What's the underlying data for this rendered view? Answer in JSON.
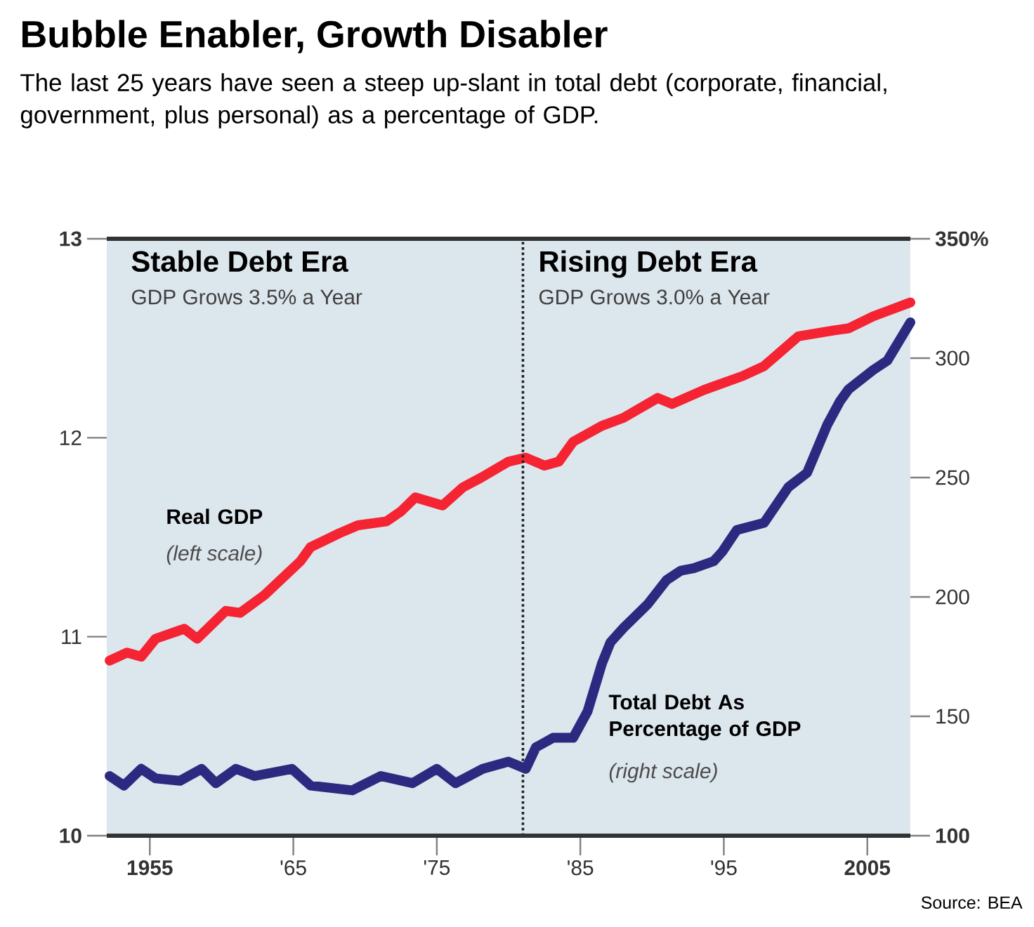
{
  "chart_data": {
    "type": "line",
    "title": "Bubble Enabler, Growth Disabler",
    "subtitle": "The last 25 years have seen a steep up-slant in total debt (corporate, financial, government, plus personal) as a percentage of GDP.",
    "xlim": [
      1952,
      2008
    ],
    "xticks": [
      1955,
      {
        "value": 1965,
        "label": "'65"
      },
      {
        "value": 1975,
        "label": "'75"
      },
      {
        "value": 1985,
        "label": "'85"
      },
      {
        "value": 1995,
        "label": "'95"
      },
      2005
    ],
    "ylim": [
      10,
      13
    ],
    "yticks": [
      10,
      11,
      12,
      13
    ],
    "y2lim": [
      100,
      350
    ],
    "y2ticks": [
      100,
      150,
      200,
      250,
      300,
      {
        "value": 350,
        "label": "350%"
      }
    ],
    "line_style": "solid",
    "ref_lines": [
      {
        "axis": "x",
        "value": 1981,
        "line_style": "dotted",
        "color": "#222222"
      }
    ],
    "annotations": [
      "Stable Debt Era",
      "GDP Grows 3.5% a Year",
      "Rising Debt Era",
      "GDP Grows 3.0% a Year",
      "(left scale)",
      "(right scale)",
      "Source: BEA"
    ],
    "series": [
      {
        "name": "Real GDP",
        "color": "#f52433",
        "x": [
          1952.2,
          1953.4,
          1954.4,
          1955.4,
          1957.4,
          1958.3,
          1960.3,
          1961.3,
          1963.0,
          1965.5,
          1966.2,
          1968.2,
          1969.5,
          1971.5,
          1972.5,
          1973.5,
          1975.4,
          1976.8,
          1978.1,
          1980.0,
          1981.2,
          1982.5,
          1983.5,
          1984.5,
          1986.5,
          1988.0,
          1990.4,
          1991.4,
          1993.6,
          1996.3,
          1997.8,
          2000.2,
          2002.7,
          2003.7,
          2005.4,
          2008.0
        ],
        "values": [
          10.88,
          10.92,
          10.9,
          10.99,
          11.04,
          10.99,
          11.13,
          11.12,
          11.21,
          11.38,
          11.45,
          11.52,
          11.56,
          11.58,
          11.63,
          11.7,
          11.66,
          11.75,
          11.8,
          11.88,
          11.9,
          11.86,
          11.88,
          11.98,
          12.06,
          12.1,
          12.2,
          12.17,
          12.24,
          12.31,
          12.36,
          12.51,
          12.54,
          12.55,
          12.61,
          12.68
        ]
      },
      {
        "name": "Total Debt As Percentage of GDP",
        "color": "#2b2a80",
        "axis": "y2",
        "x": [
          1952.2,
          1953.2,
          1954.4,
          1955.4,
          1957.1,
          1958.6,
          1959.6,
          1961.0,
          1962.3,
          1964.9,
          1966.2,
          1969.1,
          1971.1,
          1973.3,
          1975.0,
          1976.3,
          1978.2,
          1980.0,
          1981.2,
          1981.9,
          1983.1,
          1984.5,
          1985.5,
          1986.5,
          1987.1,
          1988.0,
          1989.7,
          1991.0,
          1992.0,
          1992.9,
          1994.3,
          1994.9,
          1995.9,
          1997.8,
          1999.5,
          2000.8,
          2002.2,
          2003.1,
          2003.7,
          2005.4,
          2006.4,
          2008.0
        ],
        "values": [
          125,
          121,
          128,
          124,
          123,
          128,
          122,
          128,
          125,
          128,
          121,
          119,
          125,
          122,
          128,
          122,
          128,
          131,
          128,
          137,
          141,
          141,
          152,
          172,
          181,
          187,
          197,
          207,
          211,
          212,
          215,
          219,
          228,
          231,
          246,
          252,
          272,
          282,
          287,
          295,
          299,
          315
        ]
      }
    ]
  }
}
